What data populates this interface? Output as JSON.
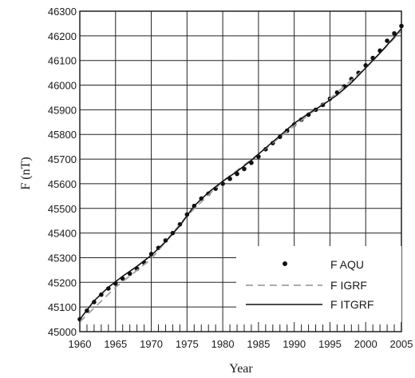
{
  "chart_data": {
    "type": "line",
    "title": "",
    "xlabel": "Year",
    "ylabel": "F (nT)",
    "xlim": [
      1960,
      2005
    ],
    "ylim": [
      45000,
      46300
    ],
    "x_ticks": [
      1960,
      1965,
      1970,
      1975,
      1980,
      1985,
      1990,
      1995,
      2000,
      2005
    ],
    "y_ticks": [
      45000,
      45100,
      45200,
      45300,
      45400,
      45500,
      45600,
      45700,
      45800,
      45900,
      46000,
      46100,
      46200,
      46300
    ],
    "grid": true,
    "legend_position": "bottom-right",
    "series": [
      {
        "name": "F AQU",
        "style": "dots",
        "color": "#111111",
        "x": [
          1960,
          1961,
          1962,
          1963,
          1964,
          1965,
          1966,
          1967,
          1968,
          1969,
          1970,
          1971,
          1972,
          1973,
          1974,
          1975,
          1976,
          1977,
          1978,
          1979,
          1980,
          1981,
          1982,
          1983,
          1984,
          1985,
          1986,
          1987,
          1988,
          1989,
          1990,
          1991,
          1992,
          1993,
          1994,
          1995,
          1996,
          1997,
          1998,
          1999,
          2000,
          2001,
          2002,
          2003,
          2004,
          2005
        ],
        "y": [
          45050,
          45085,
          45120,
          45150,
          45175,
          45195,
          45215,
          45235,
          45255,
          45280,
          45315,
          45340,
          45370,
          45400,
          45435,
          45475,
          45510,
          45540,
          45560,
          45580,
          45600,
          45620,
          45640,
          45660,
          45685,
          45710,
          45740,
          45765,
          45790,
          45815,
          45840,
          45860,
          45880,
          45900,
          45920,
          45945,
          45970,
          45995,
          46025,
          46050,
          46080,
          46110,
          46140,
          46180,
          46210,
          46240
        ]
      },
      {
        "name": "F IGRF",
        "style": "dashed",
        "color": "#a0a0a0",
        "x": [
          1960,
          1965,
          1970,
          1975,
          1980,
          1985,
          1990,
          1995,
          2000,
          2005
        ],
        "y": [
          45040,
          45180,
          45295,
          45470,
          45610,
          45720,
          45835,
          45945,
          46070,
          46220
        ]
      },
      {
        "name": "F ITGRF",
        "style": "solid",
        "color": "#111111",
        "x": [
          1960,
          1962,
          1964,
          1966,
          1968,
          1970,
          1972,
          1974,
          1976,
          1978,
          1980,
          1982,
          1984,
          1986,
          1988,
          1990,
          1992,
          1994,
          1996,
          1998,
          2000,
          2002,
          2004,
          2005
        ],
        "y": [
          45050,
          45125,
          45180,
          45225,
          45265,
          45310,
          45365,
          45430,
          45510,
          45565,
          45610,
          45650,
          45695,
          45745,
          45795,
          45845,
          45885,
          45920,
          45960,
          46010,
          46070,
          46130,
          46195,
          46230
        ]
      }
    ]
  }
}
